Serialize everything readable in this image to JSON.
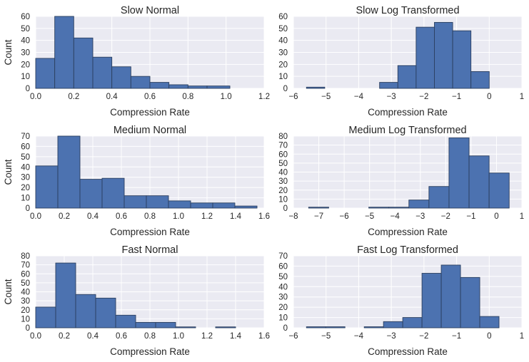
{
  "chart_data": [
    {
      "type": "bar",
      "title": "Slow Normal",
      "xlabel": "Compression Rate",
      "ylabel": "Count",
      "xlim": [
        0,
        1.2
      ],
      "ylim": [
        0,
        60
      ],
      "xticks": [
        0.0,
        0.2,
        0.4,
        0.6,
        0.8,
        1.0,
        1.2
      ],
      "xtick_labels": [
        "0.0",
        "0.2",
        "0.4",
        "0.6",
        "0.8",
        "1.0",
        "1.2"
      ],
      "yticks": [
        0,
        10,
        20,
        30,
        40,
        50,
        60
      ],
      "ytick_labels": [
        "0",
        "10",
        "20",
        "30",
        "40",
        "50",
        "60"
      ],
      "bins": [
        {
          "x0": 0.0,
          "x1": 0.1,
          "value": 25
        },
        {
          "x0": 0.1,
          "x1": 0.2,
          "value": 60
        },
        {
          "x0": 0.2,
          "x1": 0.3,
          "value": 42
        },
        {
          "x0": 0.3,
          "x1": 0.4,
          "value": 26
        },
        {
          "x0": 0.4,
          "x1": 0.5,
          "value": 18
        },
        {
          "x0": 0.5,
          "x1": 0.6,
          "value": 10
        },
        {
          "x0": 0.6,
          "x1": 0.7,
          "value": 5
        },
        {
          "x0": 0.7,
          "x1": 0.8,
          "value": 3
        },
        {
          "x0": 0.8,
          "x1": 0.9,
          "value": 2
        },
        {
          "x0": 0.9,
          "x1": 1.02,
          "value": 2
        }
      ]
    },
    {
      "type": "bar",
      "title": "Slow Log Transformed",
      "xlabel": "Compression Rate",
      "ylabel": "",
      "xlim": [
        -6,
        1
      ],
      "ylim": [
        0,
        60
      ],
      "xticks": [
        -6,
        -5,
        -4,
        -3,
        -2,
        -1,
        0,
        1
      ],
      "xtick_labels": [
        "−6",
        "−5",
        "−4",
        "−3",
        "−2",
        "−1",
        "0",
        "1"
      ],
      "yticks": [
        0,
        10,
        20,
        30,
        40,
        50,
        60
      ],
      "ytick_labels": [
        "0",
        "10",
        "20",
        "30",
        "40",
        "50",
        "60"
      ],
      "bins": [
        {
          "x0": -5.6,
          "x1": -5.04,
          "value": 1
        },
        {
          "x0": -5.04,
          "x1": -4.48,
          "value": 0
        },
        {
          "x0": -4.48,
          "x1": -3.92,
          "value": 0
        },
        {
          "x0": -3.92,
          "x1": -3.36,
          "value": 0
        },
        {
          "x0": -3.36,
          "x1": -2.8,
          "value": 5
        },
        {
          "x0": -2.8,
          "x1": -2.24,
          "value": 19
        },
        {
          "x0": -2.24,
          "x1": -1.68,
          "value": 51
        },
        {
          "x0": -1.68,
          "x1": -1.12,
          "value": 55
        },
        {
          "x0": -1.12,
          "x1": -0.56,
          "value": 48
        },
        {
          "x0": -0.56,
          "x1": 0.0,
          "value": 14
        }
      ]
    },
    {
      "type": "bar",
      "title": "Medium Normal",
      "xlabel": "Compression Rate",
      "ylabel": "Count",
      "xlim": [
        0,
        1.6
      ],
      "ylim": [
        0,
        70
      ],
      "xticks": [
        0.0,
        0.2,
        0.4,
        0.6,
        0.8,
        1.0,
        1.2,
        1.4,
        1.6
      ],
      "xtick_labels": [
        "0.0",
        "0.2",
        "0.4",
        "0.6",
        "0.8",
        "1.0",
        "1.2",
        "1.4",
        "1.6"
      ],
      "yticks": [
        0,
        10,
        20,
        30,
        40,
        50,
        60,
        70
      ],
      "ytick_labels": [
        "0",
        "10",
        "20",
        "30",
        "40",
        "50",
        "60",
        "70"
      ],
      "bins": [
        {
          "x0": 0.0,
          "x1": 0.155,
          "value": 41
        },
        {
          "x0": 0.155,
          "x1": 0.31,
          "value": 70
        },
        {
          "x0": 0.31,
          "x1": 0.465,
          "value": 28
        },
        {
          "x0": 0.465,
          "x1": 0.62,
          "value": 29
        },
        {
          "x0": 0.62,
          "x1": 0.775,
          "value": 12
        },
        {
          "x0": 0.775,
          "x1": 0.93,
          "value": 12
        },
        {
          "x0": 0.93,
          "x1": 1.085,
          "value": 7
        },
        {
          "x0": 1.085,
          "x1": 1.24,
          "value": 5
        },
        {
          "x0": 1.24,
          "x1": 1.395,
          "value": 5
        },
        {
          "x0": 1.395,
          "x1": 1.55,
          "value": 2
        }
      ]
    },
    {
      "type": "bar",
      "title": "Medium Log Transformed",
      "xlabel": "Compression Rate",
      "ylabel": "",
      "xlim": [
        -8,
        1
      ],
      "ylim": [
        0,
        80
      ],
      "xticks": [
        -8,
        -7,
        -6,
        -5,
        -4,
        -3,
        -2,
        -1,
        0,
        1
      ],
      "xtick_labels": [
        "−8",
        "−7",
        "−6",
        "−5",
        "−4",
        "−3",
        "−2",
        "−1",
        "0",
        "1"
      ],
      "yticks": [
        0,
        10,
        20,
        30,
        40,
        50,
        60,
        70,
        80
      ],
      "ytick_labels": [
        "0",
        "10",
        "20",
        "30",
        "40",
        "50",
        "60",
        "70",
        "80"
      ],
      "bins": [
        {
          "x0": -7.4,
          "x1": -6.61,
          "value": 1
        },
        {
          "x0": -6.61,
          "x1": -5.82,
          "value": 0
        },
        {
          "x0": -5.82,
          "x1": -5.03,
          "value": 0
        },
        {
          "x0": -5.03,
          "x1": -4.24,
          "value": 1
        },
        {
          "x0": -4.24,
          "x1": -3.45,
          "value": 1
        },
        {
          "x0": -3.45,
          "x1": -2.66,
          "value": 9
        },
        {
          "x0": -2.66,
          "x1": -1.87,
          "value": 24
        },
        {
          "x0": -1.87,
          "x1": -1.08,
          "value": 78
        },
        {
          "x0": -1.08,
          "x1": -0.29,
          "value": 58
        },
        {
          "x0": -0.29,
          "x1": 0.5,
          "value": 39
        }
      ]
    },
    {
      "type": "bar",
      "title": "Fast Normal",
      "xlabel": "Compression Rate",
      "ylabel": "Count",
      "xlim": [
        0,
        1.6
      ],
      "ylim": [
        0,
        80
      ],
      "xticks": [
        0.0,
        0.2,
        0.4,
        0.6,
        0.8,
        1.0,
        1.2,
        1.4,
        1.6
      ],
      "xtick_labels": [
        "0.0",
        "0.2",
        "0.4",
        "0.6",
        "0.8",
        "1.0",
        "1.2",
        "1.4",
        "1.6"
      ],
      "yticks": [
        0,
        10,
        20,
        30,
        40,
        50,
        60,
        70,
        80
      ],
      "ytick_labels": [
        "0",
        "10",
        "20",
        "30",
        "40",
        "50",
        "60",
        "70",
        "80"
      ],
      "bins": [
        {
          "x0": 0.0,
          "x1": 0.14,
          "value": 23
        },
        {
          "x0": 0.14,
          "x1": 0.28,
          "value": 72
        },
        {
          "x0": 0.28,
          "x1": 0.42,
          "value": 37
        },
        {
          "x0": 0.42,
          "x1": 0.56,
          "value": 33
        },
        {
          "x0": 0.56,
          "x1": 0.7,
          "value": 14
        },
        {
          "x0": 0.7,
          "x1": 0.84,
          "value": 6
        },
        {
          "x0": 0.84,
          "x1": 0.98,
          "value": 6
        },
        {
          "x0": 0.98,
          "x1": 1.12,
          "value": 1
        },
        {
          "x0": 1.12,
          "x1": 1.26,
          "value": 0
        },
        {
          "x0": 1.26,
          "x1": 1.4,
          "value": 1
        }
      ]
    },
    {
      "type": "bar",
      "title": "Fast Log Transformed",
      "xlabel": "Compression Rate",
      "ylabel": "",
      "xlim": [
        -6,
        1
      ],
      "ylim": [
        0,
        70
      ],
      "xticks": [
        -6,
        -5,
        -4,
        -3,
        -2,
        -1,
        0,
        1
      ],
      "xtick_labels": [
        "−6",
        "−5",
        "−4",
        "−3",
        "−2",
        "−1",
        "0",
        "1"
      ],
      "yticks": [
        0,
        10,
        20,
        30,
        40,
        50,
        60,
        70
      ],
      "ytick_labels": [
        "0",
        "10",
        "20",
        "30",
        "40",
        "50",
        "60",
        "70"
      ],
      "bins": [
        {
          "x0": -5.6,
          "x1": -5.01,
          "value": 1
        },
        {
          "x0": -5.01,
          "x1": -4.42,
          "value": 1
        },
        {
          "x0": -4.42,
          "x1": -3.83,
          "value": 0
        },
        {
          "x0": -3.83,
          "x1": -3.24,
          "value": 1
        },
        {
          "x0": -3.24,
          "x1": -2.65,
          "value": 6
        },
        {
          "x0": -2.65,
          "x1": -2.06,
          "value": 10
        },
        {
          "x0": -2.06,
          "x1": -1.47,
          "value": 53
        },
        {
          "x0": -1.47,
          "x1": -0.88,
          "value": 61
        },
        {
          "x0": -0.88,
          "x1": -0.29,
          "value": 49
        },
        {
          "x0": -0.29,
          "x1": 0.3,
          "value": 11
        }
      ]
    }
  ],
  "colors": {
    "axes_background": "#EAEAF2",
    "grid": "#FFFFFF",
    "bar_fill": "#4C72B0",
    "bar_edge": "#2B3F5F",
    "text": "#262626"
  }
}
